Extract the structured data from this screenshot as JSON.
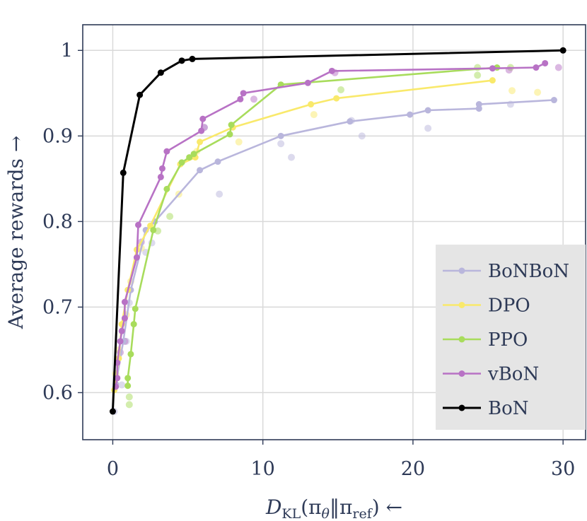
{
  "chart_data": {
    "type": "line",
    "title": "",
    "xlabel": "D_KL(π_θ‖π_ref) ←",
    "xlabel_parts": {
      "main": "D",
      "sub": "KL",
      "open": "(π",
      "theta": "θ",
      "sep": "‖π",
      "ref": "ref",
      "close": ") ←"
    },
    "ylabel": "Average rewards →",
    "xlim": [
      -2,
      31.5
    ],
    "ylim": [
      0.545,
      1.03
    ],
    "xticks": [
      0,
      10,
      20,
      30
    ],
    "yticks": [
      0.6,
      0.7,
      0.8,
      0.9,
      1.0
    ],
    "ytick_labels": [
      "0.6",
      "0.7",
      "0.8",
      "0.9",
      "1"
    ],
    "grid": true,
    "legend_position": "bottom-right",
    "series": [
      {
        "name": "BoNBoN",
        "color": "#b9b6dc",
        "line": [
          [
            0.2,
            0.61
          ],
          [
            0.7,
            0.66
          ],
          [
            1.2,
            0.72
          ],
          [
            2.2,
            0.79
          ],
          [
            2.8,
            0.8
          ],
          [
            5.8,
            0.86
          ],
          [
            7.0,
            0.87
          ],
          [
            11.2,
            0.9
          ],
          [
            15.8,
            0.917
          ],
          [
            19.8,
            0.925
          ],
          [
            21.0,
            0.93
          ],
          [
            24.4,
            0.932
          ],
          [
            24.4,
            0.937
          ],
          [
            29.4,
            0.942
          ]
        ],
        "scatter": [
          [
            0.1,
            0.578
          ],
          [
            0.6,
            0.609
          ],
          [
            0.9,
            0.66
          ],
          [
            1.1,
            0.705
          ],
          [
            2.2,
            0.764
          ],
          [
            2.6,
            0.775
          ],
          [
            7.1,
            0.832
          ],
          [
            6.1,
            0.91
          ],
          [
            11.2,
            0.891
          ],
          [
            11.9,
            0.875
          ],
          [
            16.6,
            0.9
          ],
          [
            15.9,
            0.918
          ],
          [
            21.0,
            0.909
          ],
          [
            26.5,
            0.937
          ]
        ]
      },
      {
        "name": "DPO",
        "color": "#f9e96b",
        "line": [
          [
            0.1,
            0.603
          ],
          [
            0.4,
            0.64
          ],
          [
            0.6,
            0.68
          ],
          [
            1.0,
            0.72
          ],
          [
            1.6,
            0.767
          ],
          [
            2.5,
            0.795
          ],
          [
            4.5,
            0.867
          ],
          [
            5.5,
            0.875
          ],
          [
            5.8,
            0.893
          ],
          [
            8.0,
            0.91
          ],
          [
            13.2,
            0.937
          ],
          [
            14.9,
            0.944
          ],
          [
            25.3,
            0.965
          ]
        ],
        "scatter": [
          [
            0.2,
            0.622
          ],
          [
            0.4,
            0.65
          ],
          [
            0.9,
            0.691
          ],
          [
            1.2,
            0.73
          ],
          [
            1.9,
            0.769
          ],
          [
            4.4,
            0.832
          ],
          [
            5.6,
            0.882
          ],
          [
            8.4,
            0.893
          ],
          [
            13.4,
            0.925
          ],
          [
            26.6,
            0.953
          ],
          [
            28.3,
            0.951
          ]
        ]
      },
      {
        "name": "PPO",
        "color": "#a8dc5c",
        "line": [
          [
            1.0,
            0.608
          ],
          [
            1.0,
            0.617
          ],
          [
            1.2,
            0.645
          ],
          [
            1.4,
            0.68
          ],
          [
            1.5,
            0.698
          ],
          [
            2.7,
            0.79
          ],
          [
            3.6,
            0.838
          ],
          [
            4.6,
            0.869
          ],
          [
            5.1,
            0.875
          ],
          [
            5.4,
            0.879
          ],
          [
            7.8,
            0.902
          ],
          [
            7.9,
            0.913
          ],
          [
            11.2,
            0.96
          ],
          [
            25.6,
            0.98
          ]
        ],
        "scatter": [
          [
            1.1,
            0.595
          ],
          [
            1.1,
            0.586
          ],
          [
            3.0,
            0.789
          ],
          [
            3.8,
            0.806
          ],
          [
            15.2,
            0.954
          ],
          [
            24.3,
            0.98
          ],
          [
            24.3,
            0.971
          ],
          [
            26.5,
            0.98
          ]
        ]
      },
      {
        "name": "vBoN",
        "color": "#b872c5",
        "line": [
          [
            0.2,
            0.607
          ],
          [
            0.3,
            0.617
          ],
          [
            0.3,
            0.635
          ],
          [
            0.5,
            0.66
          ],
          [
            0.6,
            0.672
          ],
          [
            0.8,
            0.687
          ],
          [
            0.8,
            0.706
          ],
          [
            1.6,
            0.758
          ],
          [
            1.7,
            0.796
          ],
          [
            3.2,
            0.852
          ],
          [
            3.3,
            0.862
          ],
          [
            3.6,
            0.882
          ],
          [
            5.9,
            0.906
          ],
          [
            6.0,
            0.92
          ],
          [
            8.5,
            0.943
          ],
          [
            8.7,
            0.95
          ],
          [
            13.0,
            0.962
          ],
          [
            14.6,
            0.976
          ],
          [
            25.3,
            0.979
          ],
          [
            28.2,
            0.98
          ],
          [
            28.8,
            0.985
          ]
        ],
        "scatter": [
          [
            0.5,
            0.647
          ],
          [
            0.8,
            0.66
          ],
          [
            1.9,
            0.776
          ],
          [
            6.1,
            0.91
          ],
          [
            9.4,
            0.943
          ],
          [
            14.8,
            0.974
          ],
          [
            26.4,
            0.977
          ],
          [
            29.7,
            0.98
          ]
        ]
      },
      {
        "name": "BoN",
        "color": "#000000",
        "line": [
          [
            0.0,
            0.578
          ],
          [
            0.7,
            0.857
          ],
          [
            1.8,
            0.948
          ],
          [
            3.2,
            0.974
          ],
          [
            4.6,
            0.988
          ],
          [
            5.3,
            0.99
          ],
          [
            30.0,
            1.0
          ]
        ],
        "scatter": []
      }
    ]
  }
}
